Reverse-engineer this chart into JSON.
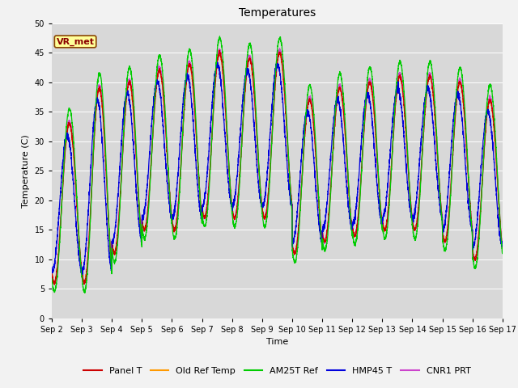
{
  "title": "Temperatures",
  "xlabel": "Time",
  "ylabel": "Temperature (C)",
  "ylim": [
    0,
    50
  ],
  "n_days": 15,
  "x_tick_labels": [
    "Sep 2",
    "Sep 3",
    "Sep 4",
    "Sep 5",
    "Sep 6",
    "Sep 7",
    "Sep 8",
    "Sep 9",
    "Sep 10",
    "Sep 11",
    "Sep 12",
    "Sep 13",
    "Sep 14",
    "Sep 15",
    "Sep 16",
    "Sep 17"
  ],
  "series_labels": [
    "Panel T",
    "Old Ref Temp",
    "AM25T Ref",
    "HMP45 T",
    "CNR1 PRT"
  ],
  "series_colors": [
    "#cc0000",
    "#ff9900",
    "#00cc00",
    "#0000dd",
    "#cc44cc"
  ],
  "annotation_text": "VR_met",
  "plot_bg_color": "#d8d8d8",
  "fig_bg_color": "#f2f2f2",
  "title_fontsize": 10,
  "label_fontsize": 8,
  "tick_fontsize": 7,
  "legend_fontsize": 8,
  "day_maxes": [
    33,
    39,
    40,
    42,
    43,
    45,
    44,
    45,
    37,
    39,
    40,
    41,
    41,
    40,
    37
  ],
  "day_mins": [
    6,
    6,
    11,
    15,
    15,
    17,
    17,
    17,
    11,
    13,
    14,
    15,
    15,
    13,
    10
  ],
  "n_points_per_day": 288
}
